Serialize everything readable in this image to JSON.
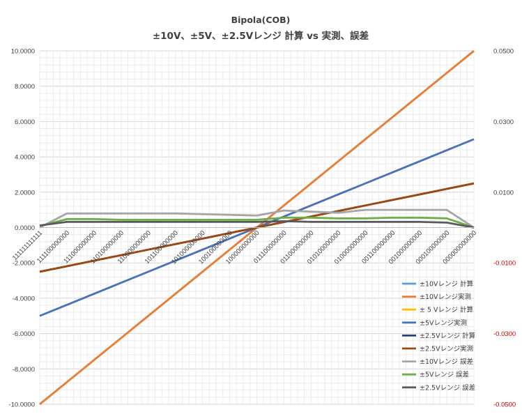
{
  "chart_data": {
    "type": "line",
    "title": "Bipola(COB)",
    "subtitle": "±10V、±5V、±2.5Vレンジ 計算 vs 実測、誤差",
    "categories": [
      "111111111111",
      "111100000000",
      "111000000000",
      "110100000000",
      "110000000000",
      "101100000000",
      "101000000000",
      "100100000000",
      "100000000000",
      "011100000000",
      "011000000000",
      "010100000000",
      "010000000000",
      "001100000000",
      "001000000000",
      "000100000000",
      "000000000000"
    ],
    "y_left": {
      "min": -10,
      "max": 10,
      "step": 2,
      "ticks": [
        "10.0000",
        "8.0000",
        "6.0000",
        "4.0000",
        "2.0000",
        "0.0000",
        "-2.0000",
        "-4.0000",
        "-6.0000",
        "-8.0000",
        "-10.0000"
      ]
    },
    "y_right": {
      "min": -0.05,
      "max": 0.05,
      "ticks": [
        "0.0500",
        "0.0300",
        "0.0100",
        "-0.0100",
        "-0.0300",
        "-0.0500"
      ],
      "ticks_negative_red": true
    },
    "grid": true,
    "legend_position": "bottom-right",
    "series": [
      {
        "name": "±10Vレンジ 計算",
        "color": "#5b9bd5",
        "axis": "left",
        "values": [
          -10.0,
          -8.75,
          -7.5,
          -6.25,
          -5.0,
          -3.75,
          -2.5,
          -1.25,
          0.0,
          1.25,
          2.5,
          3.75,
          5.0,
          6.25,
          7.5,
          8.75,
          10.0
        ]
      },
      {
        "name": "±10Vレンジ実測",
        "color": "#ed7d31",
        "axis": "left",
        "values": [
          -10.0,
          -8.75,
          -7.5,
          -6.25,
          -5.0,
          -3.75,
          -2.5,
          -1.25,
          0.0,
          1.25,
          2.5,
          3.75,
          5.0,
          6.25,
          7.5,
          8.75,
          10.0
        ]
      },
      {
        "name": "± 5 Vレンジ 計算",
        "color": "#ffc000",
        "axis": "left",
        "values": [
          -5.0,
          -4.375,
          -3.75,
          -3.125,
          -2.5,
          -1.875,
          -1.25,
          -0.625,
          0.0,
          0.625,
          1.25,
          1.875,
          2.5,
          3.125,
          3.75,
          4.375,
          5.0
        ]
      },
      {
        "name": "±5Vレンジ実測",
        "color": "#4472c4",
        "axis": "left",
        "values": [
          -5.0,
          -4.375,
          -3.75,
          -3.125,
          -2.5,
          -1.875,
          -1.25,
          -0.625,
          0.0,
          0.625,
          1.25,
          1.875,
          2.5,
          3.125,
          3.75,
          4.375,
          5.0
        ]
      },
      {
        "name": "±2.5Vレンジ 計算",
        "color": "#264478",
        "axis": "left",
        "values": [
          -2.5,
          -2.1875,
          -1.875,
          -1.5625,
          -1.25,
          -0.9375,
          -0.625,
          -0.3125,
          0.0,
          0.3125,
          0.625,
          0.9375,
          1.25,
          1.5625,
          1.875,
          2.1875,
          2.5
        ]
      },
      {
        "name": "±2.5Vレンジ実測",
        "color": "#9e480e",
        "axis": "left",
        "values": [
          -2.5,
          -2.1875,
          -1.875,
          -1.5625,
          -1.25,
          -0.9375,
          -0.625,
          -0.3125,
          0.0,
          0.3125,
          0.625,
          0.9375,
          1.25,
          1.5625,
          1.875,
          2.1875,
          2.5
        ]
      },
      {
        "name": "±10Vレンジ 誤差",
        "color": "#a5a5a5",
        "axis": "right",
        "values": [
          0.0,
          0.004,
          0.004,
          0.004,
          0.004,
          0.004,
          0.0038,
          0.0036,
          0.0034,
          0.0048,
          0.0045,
          0.0042,
          0.005,
          0.005,
          0.005,
          0.005,
          0.0
        ]
      },
      {
        "name": "±5Vレンジ 誤差",
        "color": "#70ad47",
        "axis": "right",
        "values": [
          0.0004,
          0.0024,
          0.0024,
          0.0022,
          0.0022,
          0.0022,
          0.0022,
          0.0022,
          0.0022,
          0.0028,
          0.0028,
          0.0026,
          0.0026,
          0.0028,
          0.0028,
          0.0026,
          0.0
        ]
      },
      {
        "name": "±2.5Vレンジ 誤差",
        "color": "#595959",
        "axis": "right",
        "values": [
          0.0006,
          0.0016,
          0.0016,
          0.0016,
          0.0016,
          0.0016,
          0.0016,
          0.0016,
          0.0016,
          0.0018,
          0.0016,
          0.0016,
          0.0016,
          0.0016,
          0.0016,
          0.0014,
          0.0
        ]
      }
    ]
  }
}
